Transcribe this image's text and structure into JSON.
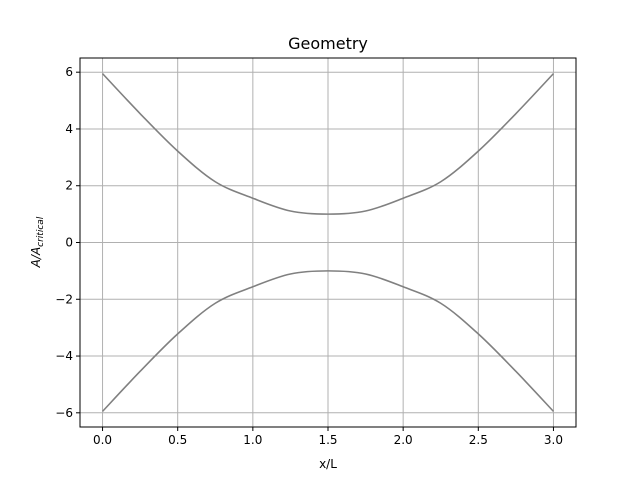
{
  "chart_data": {
    "type": "line",
    "title": "Geometry",
    "xlabel": "x/L",
    "ylabel": "A/A",
    "ylabel_subscript": "critical",
    "xlim": [
      -0.15,
      3.15
    ],
    "ylim": [
      -6.5,
      6.5
    ],
    "xticks": [
      0.0,
      0.5,
      1.0,
      1.5,
      2.0,
      2.5,
      3.0
    ],
    "xtick_labels": [
      "0.0",
      "0.5",
      "1.0",
      "1.5",
      "2.0",
      "2.5",
      "3.0"
    ],
    "yticks": [
      -6,
      -4,
      -2,
      0,
      2,
      4,
      6
    ],
    "ytick_labels": [
      "−6",
      "−4",
      "−2",
      "0",
      "2",
      "4",
      "6"
    ],
    "grid": true,
    "line_color": "#808080",
    "series": [
      {
        "x": [
          0.0,
          0.25,
          0.5,
          0.75,
          1.0,
          1.25,
          1.5,
          1.75,
          2.0,
          2.25,
          2.5,
          2.75,
          3.0
        ],
        "y": [
          5.95,
          4.54,
          3.22,
          2.14,
          1.56,
          1.11,
          1.0,
          1.11,
          1.56,
          2.14,
          3.22,
          4.54,
          5.95
        ]
      },
      {
        "x": [
          0.0,
          0.25,
          0.5,
          0.75,
          1.0,
          1.25,
          1.5,
          1.75,
          2.0,
          2.25,
          2.5,
          2.75,
          3.0
        ],
        "y": [
          -5.95,
          -4.54,
          -3.22,
          -2.14,
          -1.56,
          -1.11,
          -1.0,
          -1.11,
          -1.56,
          -2.14,
          -3.22,
          -4.54,
          -5.95
        ]
      }
    ]
  }
}
